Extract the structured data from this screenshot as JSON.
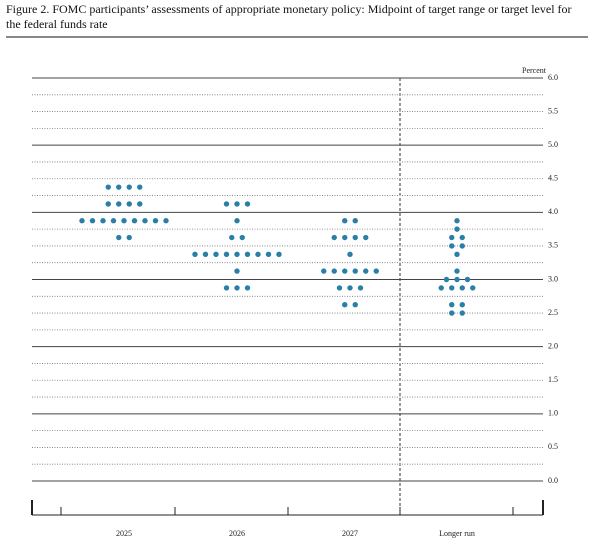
{
  "chart_data": {
    "type": "dot",
    "title": "Figure 2.  FOMC participants’ assessments of appropriate monetary policy: Midpoint of target range or target level for the federal funds rate",
    "y_label": "Percent",
    "color": "#2a7fa8",
    "categories": [
      "2025",
      "2026",
      "2027",
      "Longer run"
    ],
    "values": [
      [
        {
          "y": 4.375,
          "count": 4
        },
        {
          "y": 4.125,
          "count": 4
        },
        {
          "y": 3.875,
          "count": 9
        },
        {
          "y": 3.625,
          "count": 2
        }
      ],
      [
        {
          "y": 4.125,
          "count": 3
        },
        {
          "y": 3.875,
          "count": 1
        },
        {
          "y": 3.625,
          "count": 2
        },
        {
          "y": 3.375,
          "count": 9
        },
        {
          "y": 3.125,
          "count": 1
        },
        {
          "y": 2.875,
          "count": 3
        }
      ],
      [
        {
          "y": 3.875,
          "count": 2
        },
        {
          "y": 3.625,
          "count": 4
        },
        {
          "y": 3.375,
          "count": 1
        },
        {
          "y": 3.125,
          "count": 6
        },
        {
          "y": 2.875,
          "count": 3
        },
        {
          "y": 2.625,
          "count": 2
        }
      ],
      [
        {
          "y": 3.875,
          "count": 1
        },
        {
          "y": 3.75,
          "count": 1
        },
        {
          "y": 3.625,
          "count": 2
        },
        {
          "y": 3.5,
          "count": 2
        },
        {
          "y": 3.375,
          "count": 1
        },
        {
          "y": 3.125,
          "count": 1
        },
        {
          "y": 3.0,
          "count": 3
        },
        {
          "y": 2.875,
          "count": 4
        },
        {
          "y": 2.625,
          "count": 2
        },
        {
          "y": 2.5,
          "count": 2
        }
      ]
    ],
    "ylim": [
      0,
      6
    ],
    "yticks": [
      {
        "value": 0,
        "label": "0.0"
      },
      {
        "value": 0.5,
        "label": "0.5"
      },
      {
        "value": 1,
        "label": "1.0"
      },
      {
        "value": 1.5,
        "label": "1.5"
      },
      {
        "value": 2,
        "label": "2.0"
      },
      {
        "value": 2.5,
        "label": "2.5"
      },
      {
        "value": 3,
        "label": "3.0"
      },
      {
        "value": 3.5,
        "label": "3.5"
      },
      {
        "value": 4,
        "label": "4.0"
      },
      {
        "value": 4.5,
        "label": "4.5"
      },
      {
        "value": 5,
        "label": "5.0"
      },
      {
        "value": 5.5,
        "label": "5.5"
      },
      {
        "value": 6,
        "label": "6.0"
      }
    ],
    "grid": true
  }
}
